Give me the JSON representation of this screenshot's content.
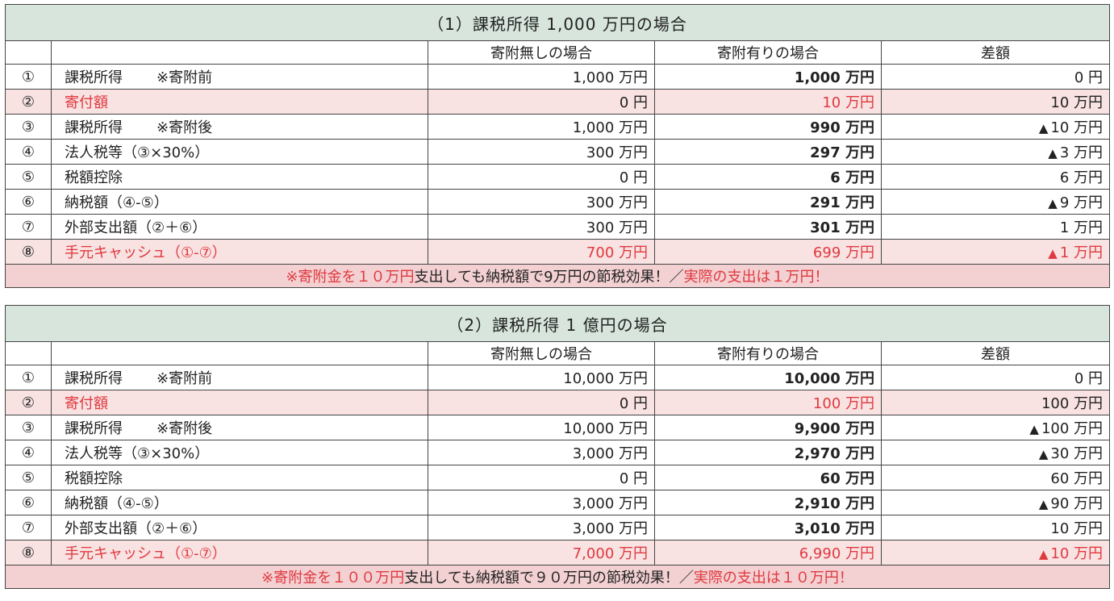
{
  "colors": {
    "header_bg": "#d7e5dc",
    "highlight_row_bg": "#f8e2e2",
    "note_row_bg": "#f3d0d2",
    "accent_red": "#e0393e"
  },
  "tables": [
    {
      "title": "（1）課税所得 1,000 万円の場合",
      "col_headers": [
        "",
        "",
        "寄附無しの場合",
        "寄附有りの場合",
        "差額"
      ],
      "rows": [
        {
          "no": "①",
          "label": "課税所得",
          "label_note": "※寄附前",
          "without": "1,000 万円",
          "with": "1,000 万円",
          "diff": "0 円"
        },
        {
          "no": "②",
          "label": "寄付額",
          "label_note": "",
          "without": "0 円",
          "with": "10 万円",
          "diff": "10 万円"
        },
        {
          "no": "③",
          "label": "課税所得",
          "label_note": "※寄附後",
          "without": "1,000 万円",
          "with": "990 万円",
          "diff": "10 万円",
          "diff_mark": "▲"
        },
        {
          "no": "④",
          "label": "法人税等（③×30%）",
          "label_note": "",
          "without": "300 万円",
          "with": "297 万円",
          "diff": "3 万円",
          "diff_mark": "▲"
        },
        {
          "no": "⑤",
          "label": "税額控除",
          "label_note": "",
          "without": "0 円",
          "with": "6 万円",
          "diff": "6 万円"
        },
        {
          "no": "⑥",
          "label": "納税額（④-⑤）",
          "label_note": "",
          "without": "300 万円",
          "with": "291 万円",
          "diff": "9 万円",
          "diff_mark": "▲"
        },
        {
          "no": "⑦",
          "label": "外部支出額（②＋⑥）",
          "label_note": "",
          "without": "300 万円",
          "with": "301 万円",
          "diff": "1 万円"
        },
        {
          "no": "⑧",
          "label": "手元キャッシュ（①-⑦）",
          "label_note": "",
          "without": "700 万円",
          "with": "699 万円",
          "diff": "1 万円",
          "diff_mark": "▲"
        }
      ],
      "note": {
        "part1": "※寄附金を１０万円",
        "part2": "支出しても納税額で9万円の節税効果！／",
        "part3": "実際の支出は１万円！"
      }
    },
    {
      "title": "（2）課税所得 1 億円の場合",
      "col_headers": [
        "",
        "",
        "寄附無しの場合",
        "寄附有りの場合",
        "差額"
      ],
      "rows": [
        {
          "no": "①",
          "label": "課税所得",
          "label_note": "※寄附前",
          "without": "10,000 万円",
          "with": "10,000 万円",
          "diff": "0 円"
        },
        {
          "no": "②",
          "label": "寄付額",
          "label_note": "",
          "without": "0 円",
          "with": "100 万円",
          "diff": "100 万円"
        },
        {
          "no": "③",
          "label": "課税所得",
          "label_note": "※寄附後",
          "without": "10,000 万円",
          "with": "9,900 万円",
          "diff": "100 万円",
          "diff_mark": "▲"
        },
        {
          "no": "④",
          "label": "法人税等（③×30%）",
          "label_note": "",
          "without": "3,000 万円",
          "with": "2,970 万円",
          "diff": "30 万円",
          "diff_mark": "▲"
        },
        {
          "no": "⑤",
          "label": "税額控除",
          "label_note": "",
          "without": "0 円",
          "with": "60 万円",
          "diff": "60 万円"
        },
        {
          "no": "⑥",
          "label": "納税額（④-⑤）",
          "label_note": "",
          "without": "3,000 万円",
          "with": "2,910 万円",
          "diff": "90 万円",
          "diff_mark": "▲"
        },
        {
          "no": "⑦",
          "label": "外部支出額（②＋⑥）",
          "label_note": "",
          "without": "3,000 万円",
          "with": "3,010 万円",
          "diff": "10 万円"
        },
        {
          "no": "⑧",
          "label": "手元キャッシュ（①-⑦）",
          "label_note": "",
          "without": "7,000 万円",
          "with": "6,990 万円",
          "diff": "10 万円",
          "diff_mark": "▲"
        }
      ],
      "note": {
        "part1": "※寄附金を１００万円",
        "part2": "支出しても納税額で９０万円の節税効果！／",
        "part3": "実際の支出は１０万円！"
      }
    }
  ]
}
